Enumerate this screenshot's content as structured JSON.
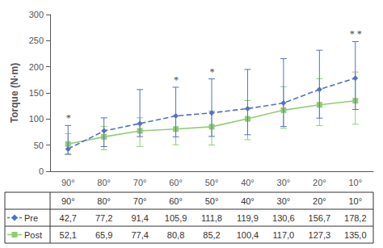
{
  "chart_data": {
    "type": "line",
    "categories": [
      "90°",
      "80°",
      "70°",
      "60°",
      "50°",
      "40°",
      "30°",
      "20°",
      "10°"
    ],
    "series": [
      {
        "name": "Pre",
        "color": "#5470c6",
        "marker": "diamond",
        "line_style": "dashed",
        "values": [
          42.7,
          77.2,
          91.4,
          105.9,
          111.8,
          119.9,
          130.6,
          156.7,
          178.2
        ],
        "err_low": [
          10,
          30,
          25,
          40,
          45,
          50,
          45,
          55,
          60
        ],
        "err_high": [
          45,
          25,
          65,
          55,
          65,
          75,
          85,
          75,
          70
        ],
        "value_labels": [
          "42,7",
          "77,2",
          "91,4",
          "105,9",
          "111,8",
          "119,9",
          "130,6",
          "156,7",
          "178,2"
        ]
      },
      {
        "name": "Post",
        "color": "#91cc75",
        "marker": "square",
        "line_style": "solid",
        "values": [
          52.1,
          65.9,
          77.4,
          80.8,
          85.2,
          100.4,
          117.0,
          127.3,
          135.0
        ],
        "err_low": [
          20,
          25,
          30,
          30,
          35,
          40,
          35,
          40,
          45
        ],
        "err_high": [
          20,
          20,
          25,
          25,
          30,
          35,
          45,
          50,
          55
        ],
        "value_labels": [
          "52,1",
          "65,9",
          "77,4",
          "80,8",
          "85,2",
          "100,4",
          "117,0",
          "127,3",
          "135,0"
        ]
      }
    ],
    "ylabel": "Torque (N·m)",
    "ylim": [
      0,
      300
    ],
    "yticks": [
      0,
      50,
      100,
      150,
      200,
      250,
      300
    ],
    "grid": false,
    "annotations": [
      {
        "x": "90°",
        "text": "*"
      },
      {
        "x": "60°",
        "text": "*"
      },
      {
        "x": "50°",
        "text": "*"
      },
      {
        "x": "10°",
        "text": "* *"
      }
    ]
  }
}
